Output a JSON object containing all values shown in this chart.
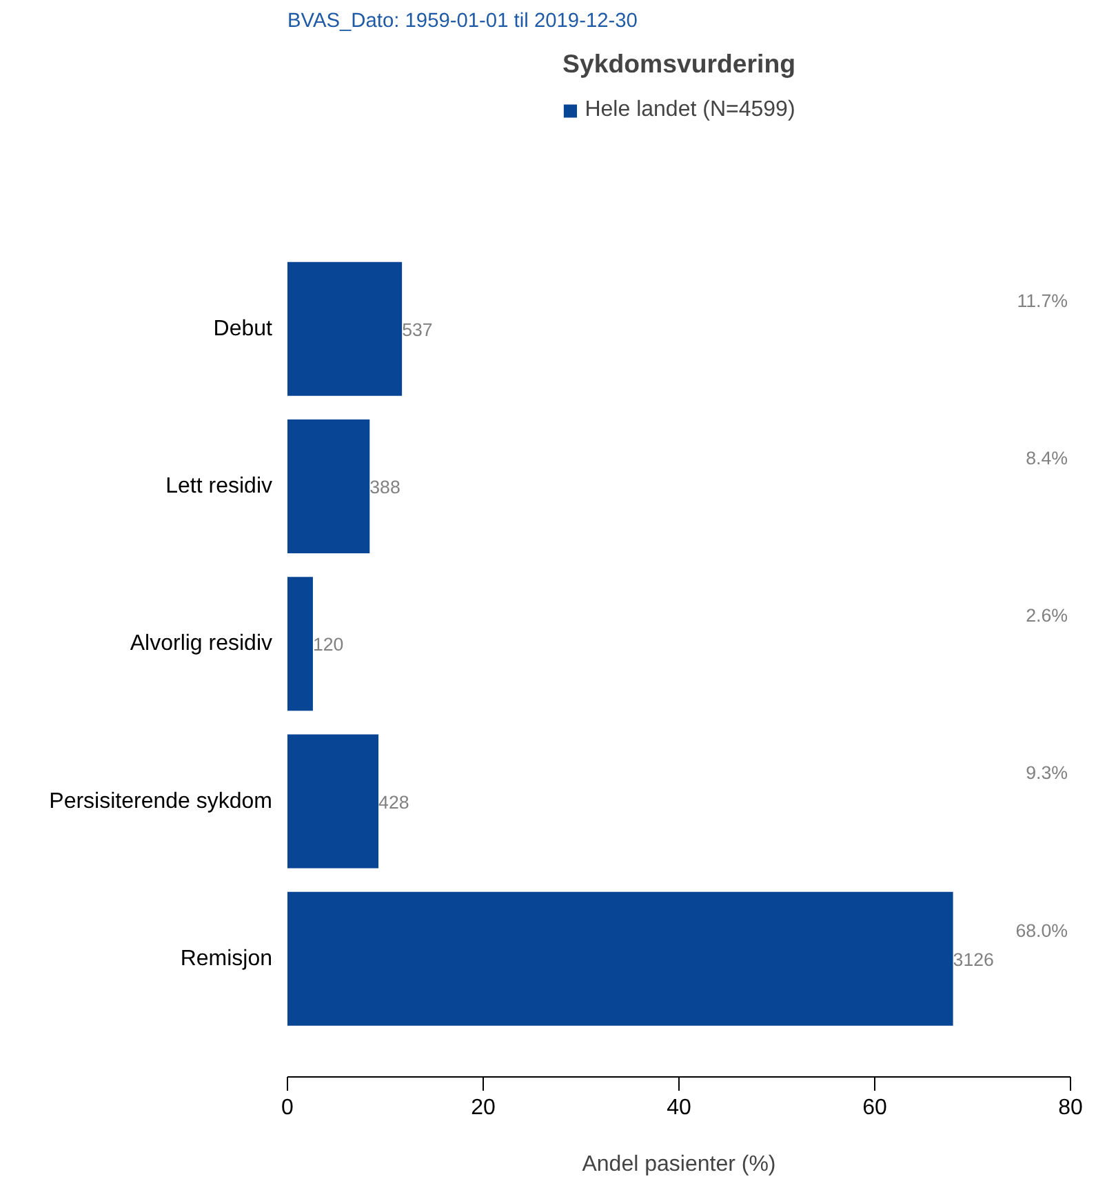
{
  "chart_data": {
    "type": "bar",
    "orientation": "horizontal",
    "subtitle": "BVAS_Dato: 1959-01-01 til 2019-12-30",
    "title": "Sykdomsvurdering",
    "xlabel": "Andel pasienter (%)",
    "categories": [
      "Debut",
      "Lett residiv",
      "Alvorlig residiv",
      "Persisiterende sykdom",
      "Remisjon"
    ],
    "series": [
      {
        "name": "Hele landet (N=4599)",
        "color": "#084594",
        "values": [
          11.7,
          8.4,
          2.6,
          9.3,
          68.0
        ],
        "value_labels": [
          "11.7%",
          "8.4%",
          "2.6%",
          "9.3%",
          "68.0%"
        ]
      }
    ],
    "annotations": [
      "537",
      "388",
      "120",
      "428",
      "3126"
    ],
    "xlim": [
      0,
      80
    ],
    "xticks": [
      0,
      20,
      40,
      60,
      80
    ],
    "grid": false,
    "legend": "top"
  }
}
